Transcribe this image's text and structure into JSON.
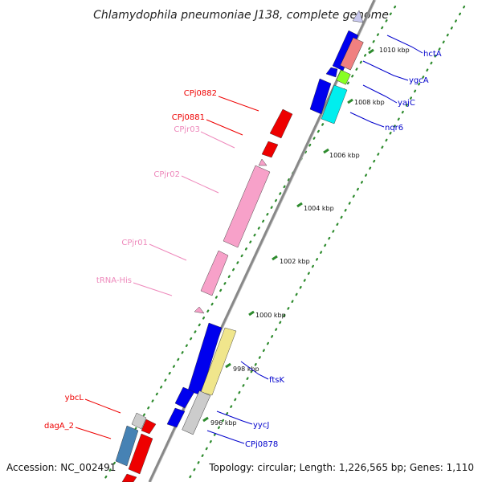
{
  "title": "Chlamydophila pneumoniae J138, complete genome",
  "footer": {
    "accession": "Accession: NC_002491",
    "summary": "Topology: circular; Length: 1,226,565 bp; Genes: 1,110"
  },
  "colors": {
    "backbone": "#888888",
    "dots": "#2e8b2e",
    "ticks": "#2e8b2e",
    "protein_cds": "#0000ee",
    "trna_rrna": "#f7a1c9",
    "red_label": "#ee0000",
    "pink_label": "#ee88bb",
    "blue_label": "#0000cc"
  },
  "ticks": [
    {
      "label": "1010 kbp"
    },
    {
      "label": "1008 kbp"
    },
    {
      "label": "1006 kbp"
    },
    {
      "label": "1004 kbp"
    },
    {
      "label": "1002 kbp"
    },
    {
      "label": "1000 kbp"
    },
    {
      "label": "998 kbp"
    },
    {
      "label": "996 kbp"
    }
  ],
  "genes_left": [
    {
      "name": "CPj0882",
      "color": "#ee0000"
    },
    {
      "name": "CPj0881",
      "color": "#ee0000"
    },
    {
      "name": "CPjr03",
      "color": "#ee88bb"
    },
    {
      "name": "CPjr02",
      "color": "#ee88bb"
    },
    {
      "name": "CPjr01",
      "color": "#ee88bb"
    },
    {
      "name": "tRNA-His",
      "color": "#ee88bb"
    },
    {
      "name": "ybcL",
      "color": "#ee0000"
    },
    {
      "name": "dagA_2",
      "color": "#ee0000"
    }
  ],
  "genes_right": [
    {
      "name": "hctA",
      "color": "#0000cc"
    },
    {
      "name": "ygcA",
      "color": "#0000cc"
    },
    {
      "name": "yajC",
      "color": "#0000cc"
    },
    {
      "name": "nqr6",
      "color": "#0000cc"
    },
    {
      "name": "ftsK",
      "color": "#0000cc"
    },
    {
      "name": "yycJ",
      "color": "#0000cc"
    },
    {
      "name": "CPj0878",
      "color": "#0000cc"
    }
  ]
}
